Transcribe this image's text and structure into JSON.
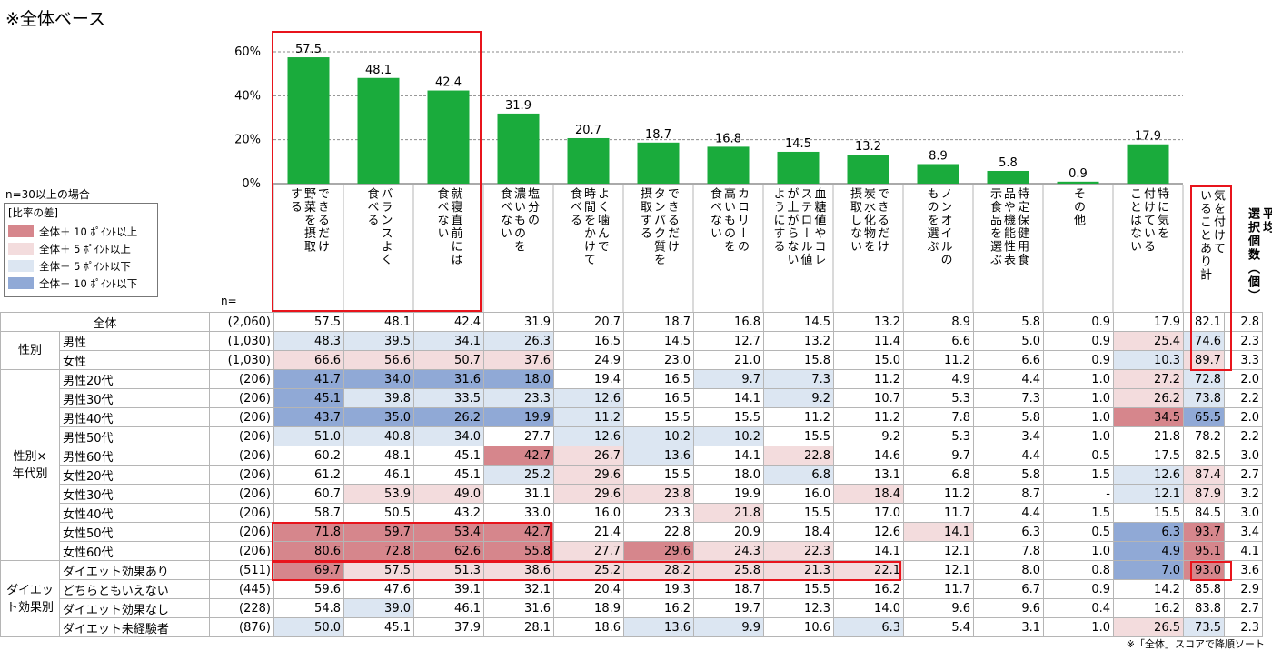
{
  "page_title": "※全体ベース",
  "n_note": "n=30以上の場合",
  "legend": {
    "title": "[比率の差]",
    "items": [
      {
        "label": "全体＋ 10 ﾎﾟｲﾝﾄ以上",
        "color": "#d6868c"
      },
      {
        "label": "全体＋  5 ﾎﾟｲﾝﾄ以上",
        "color": "#f3dcdd"
      },
      {
        "label": "全体－  5 ﾎﾟｲﾝﾄ以下",
        "color": "#dce6f2"
      },
      {
        "label": "全体－ 10 ﾎﾟｲﾝﾄ以下",
        "color": "#90a9d6"
      }
    ]
  },
  "n_label": "n=",
  "footnote": "※「全体」スコアで降順ソート",
  "summary_label": "気を付けていることあり計",
  "avg_label": "平均選択個数（個）",
  "chart_data": {
    "type": "bar",
    "color": "#1aab3c",
    "ylim": [
      0,
      60
    ],
    "yticks": [
      "0%",
      "20%",
      "40%",
      "60%"
    ],
    "grid": true,
    "categories": [
      "野菜を摂取できるだけする",
      "バランスよく食べる",
      "就寝直前には食べない",
      "塩分の濃いものを食べない",
      "よく噛んで時間をかけて食べる",
      "できるだけタンパク質を摂取する",
      "カロリーの高いものを食べない",
      "血糖値やコレステロール値が上がらないようにする",
      "できるだけ炭水化物を摂取しない",
      "ノンオイルのものを選ぶ",
      "特定保健用食品や機能性表示食品を選ぶ",
      "その他",
      "特に気を付けていることはない"
    ],
    "category_columns": [
      [
        "できるだけ",
        "野菜を摂取",
        "する"
      ],
      [
        "バランスよく",
        "食べる"
      ],
      [
        "就寝直前には",
        "食べない"
      ],
      [
        "塩分の",
        "濃いものを",
        "食べない"
      ],
      [
        "よく噛んで",
        "時間をかけて",
        "食べる"
      ],
      [
        "できるだけ",
        "タンパク質を",
        "摂取する"
      ],
      [
        "カロリーの",
        "高いものを",
        "食べない"
      ],
      [
        "血糖値やコレ",
        "ステロール値",
        "が上がらない",
        "ようにする"
      ],
      [
        "できるだけ",
        "炭水化物を",
        "摂取しない"
      ],
      [
        "ノンオイルの",
        "ものを選ぶ"
      ],
      [
        "特定保健用食",
        "品や機能性表",
        "示食品を選ぶ"
      ],
      [
        "その他"
      ],
      [
        "特に気を",
        "付けている",
        "ことはない"
      ]
    ],
    "values": [
      57.5,
      48.1,
      42.4,
      31.9,
      20.7,
      18.7,
      16.8,
      14.5,
      13.2,
      8.9,
      5.8,
      0.9,
      17.9
    ]
  },
  "table": {
    "groups": [
      {
        "label": "",
        "rows": [
          {
            "label": "全体",
            "n": "(2,060)",
            "values": [
              "57.5",
              "48.1",
              "42.4",
              "31.9",
              "20.7",
              "18.7",
              "16.8",
              "14.5",
              "13.2",
              "8.9",
              "5.8",
              "0.9",
              "17.9"
            ],
            "shade": [
              0,
              0,
              0,
              0,
              0,
              0,
              0,
              0,
              0,
              0,
              0,
              0,
              0
            ],
            "total": "82.1",
            "total_shade": 0,
            "avg": "2.8"
          }
        ]
      },
      {
        "label": "性別",
        "rows": [
          {
            "label": "男性",
            "n": "(1,030)",
            "values": [
              "48.3",
              "39.5",
              "34.1",
              "26.3",
              "16.5",
              "14.5",
              "12.7",
              "13.2",
              "11.4",
              "6.6",
              "5.0",
              "0.9",
              "25.4"
            ],
            "shade": [
              -1,
              -1,
              -1,
              -1,
              0,
              0,
              0,
              0,
              0,
              0,
              0,
              0,
              1
            ],
            "total": "74.6",
            "total_shade": -1,
            "avg": "2.3"
          },
          {
            "label": "女性",
            "n": "(1,030)",
            "values": [
              "66.6",
              "56.6",
              "50.7",
              "37.6",
              "24.9",
              "23.0",
              "21.0",
              "15.8",
              "15.0",
              "11.2",
              "6.6",
              "0.9",
              "10.3"
            ],
            "shade": [
              1,
              1,
              1,
              1,
              0,
              0,
              0,
              0,
              0,
              0,
              0,
              0,
              -1
            ],
            "total": "89.7",
            "total_shade": 1,
            "avg": "3.3"
          }
        ]
      },
      {
        "label": "性別×年代別",
        "rows": [
          {
            "label": "男性20代",
            "n": "(206)",
            "values": [
              "41.7",
              "34.0",
              "31.6",
              "18.0",
              "19.4",
              "16.5",
              "9.7",
              "7.3",
              "11.2",
              "4.9",
              "4.4",
              "1.0",
              "27.2"
            ],
            "shade": [
              -2,
              -2,
              -2,
              -2,
              0,
              0,
              -1,
              -1,
              0,
              0,
              0,
              0,
              1
            ],
            "total": "72.8",
            "total_shade": -1,
            "avg": "2.0"
          },
          {
            "label": "男性30代",
            "n": "(206)",
            "values": [
              "45.1",
              "39.8",
              "33.5",
              "23.3",
              "12.6",
              "16.5",
              "14.1",
              "9.2",
              "10.7",
              "5.3",
              "7.3",
              "1.0",
              "26.2"
            ],
            "shade": [
              -2,
              -1,
              -1,
              -1,
              -1,
              0,
              0,
              -1,
              0,
              0,
              0,
              0,
              1
            ],
            "total": "73.8",
            "total_shade": -1,
            "avg": "2.2"
          },
          {
            "label": "男性40代",
            "n": "(206)",
            "values": [
              "43.7",
              "35.0",
              "26.2",
              "19.9",
              "11.2",
              "15.5",
              "15.5",
              "11.2",
              "11.2",
              "7.8",
              "5.8",
              "1.0",
              "34.5"
            ],
            "shade": [
              -2,
              -2,
              -2,
              -2,
              -1,
              0,
              0,
              0,
              0,
              0,
              0,
              0,
              2
            ],
            "total": "65.5",
            "total_shade": -2,
            "avg": "2.0"
          },
          {
            "label": "男性50代",
            "n": "(206)",
            "values": [
              "51.0",
              "40.8",
              "34.0",
              "27.7",
              "12.6",
              "10.2",
              "10.2",
              "15.5",
              "9.2",
              "5.3",
              "3.4",
              "1.0",
              "21.8"
            ],
            "shade": [
              -1,
              -1,
              -1,
              0,
              -1,
              -1,
              -1,
              0,
              0,
              0,
              0,
              0,
              0
            ],
            "total": "78.2",
            "total_shade": 0,
            "avg": "2.2"
          },
          {
            "label": "男性60代",
            "n": "(206)",
            "values": [
              "60.2",
              "48.1",
              "45.1",
              "42.7",
              "26.7",
              "13.6",
              "14.1",
              "22.8",
              "14.6",
              "9.7",
              "4.4",
              "0.5",
              "17.5"
            ],
            "shade": [
              0,
              0,
              0,
              2,
              1,
              -1,
              0,
              1,
              0,
              0,
              0,
              0,
              0
            ],
            "total": "82.5",
            "total_shade": 0,
            "avg": "3.0"
          },
          {
            "label": "女性20代",
            "n": "(206)",
            "values": [
              "61.2",
              "46.1",
              "45.1",
              "25.2",
              "29.6",
              "15.5",
              "18.0",
              "6.8",
              "13.1",
              "6.8",
              "5.8",
              "1.5",
              "12.6"
            ],
            "shade": [
              0,
              0,
              0,
              -1,
              1,
              0,
              0,
              -1,
              0,
              0,
              0,
              0,
              -1
            ],
            "total": "87.4",
            "total_shade": 1,
            "avg": "2.7"
          },
          {
            "label": "女性30代",
            "n": "(206)",
            "values": [
              "60.7",
              "53.9",
              "49.0",
              "31.1",
              "29.6",
              "23.8",
              "19.9",
              "16.0",
              "18.4",
              "11.2",
              "8.7",
              "-",
              "12.1"
            ],
            "shade": [
              0,
              1,
              1,
              0,
              1,
              1,
              0,
              0,
              1,
              0,
              0,
              0,
              -1
            ],
            "total": "87.9",
            "total_shade": 1,
            "avg": "3.2"
          },
          {
            "label": "女性40代",
            "n": "(206)",
            "values": [
              "58.7",
              "50.5",
              "43.2",
              "33.0",
              "16.0",
              "23.3",
              "21.8",
              "15.5",
              "17.0",
              "11.7",
              "4.4",
              "1.5",
              "15.5"
            ],
            "shade": [
              0,
              0,
              0,
              0,
              0,
              0,
              1,
              0,
              0,
              0,
              0,
              0,
              0
            ],
            "total": "84.5",
            "total_shade": 0,
            "avg": "3.0"
          },
          {
            "label": "女性50代",
            "n": "(206)",
            "values": [
              "71.8",
              "59.7",
              "53.4",
              "42.7",
              "21.4",
              "22.8",
              "20.9",
              "18.4",
              "12.6",
              "14.1",
              "6.3",
              "0.5",
              "6.3"
            ],
            "shade": [
              2,
              2,
              2,
              2,
              0,
              0,
              0,
              0,
              0,
              1,
              0,
              0,
              -2
            ],
            "total": "93.7",
            "total_shade": 2,
            "avg": "3.4"
          },
          {
            "label": "女性60代",
            "n": "(206)",
            "values": [
              "80.6",
              "72.8",
              "62.6",
              "55.8",
              "27.7",
              "29.6",
              "24.3",
              "22.3",
              "14.1",
              "12.1",
              "7.8",
              "1.0",
              "4.9"
            ],
            "shade": [
              2,
              2,
              2,
              2,
              1,
              2,
              1,
              1,
              0,
              0,
              0,
              0,
              -2
            ],
            "total": "95.1",
            "total_shade": 2,
            "avg": "4.1"
          }
        ]
      },
      {
        "label": "ダイエット効果別",
        "rows": [
          {
            "label": "ダイエット効果あり",
            "n": "(511)",
            "values": [
              "69.7",
              "57.5",
              "51.3",
              "38.6",
              "25.2",
              "28.2",
              "25.8",
              "21.3",
              "22.1",
              "12.1",
              "8.0",
              "0.8",
              "7.0"
            ],
            "shade": [
              2,
              1,
              1,
              1,
              1,
              1,
              1,
              1,
              1,
              0,
              0,
              0,
              -2
            ],
            "total": "93.0",
            "total_shade": 2,
            "avg": "3.6"
          },
          {
            "label": "どちらともいえない",
            "n": "(445)",
            "values": [
              "59.6",
              "47.6",
              "39.1",
              "32.1",
              "20.4",
              "19.3",
              "18.7",
              "15.5",
              "16.2",
              "11.7",
              "6.7",
              "0.9",
              "14.2"
            ],
            "shade": [
              0,
              0,
              0,
              0,
              0,
              0,
              0,
              0,
              0,
              0,
              0,
              0,
              0
            ],
            "total": "85.8",
            "total_shade": 0,
            "avg": "2.9"
          },
          {
            "label": "ダイエット効果なし",
            "n": "(228)",
            "values": [
              "54.8",
              "39.0",
              "46.1",
              "31.6",
              "18.9",
              "16.2",
              "19.7",
              "12.3",
              "14.0",
              "9.6",
              "9.6",
              "0.4",
              "16.2"
            ],
            "shade": [
              0,
              -1,
              0,
              0,
              0,
              0,
              0,
              0,
              0,
              0,
              0,
              0,
              0
            ],
            "total": "83.8",
            "total_shade": 0,
            "avg": "2.7"
          },
          {
            "label": "ダイエット未経験者",
            "n": "(876)",
            "values": [
              "50.0",
              "45.1",
              "37.9",
              "28.1",
              "18.6",
              "13.6",
              "9.9",
              "10.6",
              "6.3",
              "5.4",
              "3.1",
              "1.0",
              "26.5"
            ],
            "shade": [
              -1,
              0,
              0,
              0,
              0,
              -1,
              -1,
              0,
              -1,
              0,
              0,
              0,
              1
            ],
            "total": "73.5",
            "total_shade": -1,
            "avg": "2.3"
          }
        ]
      }
    ]
  }
}
